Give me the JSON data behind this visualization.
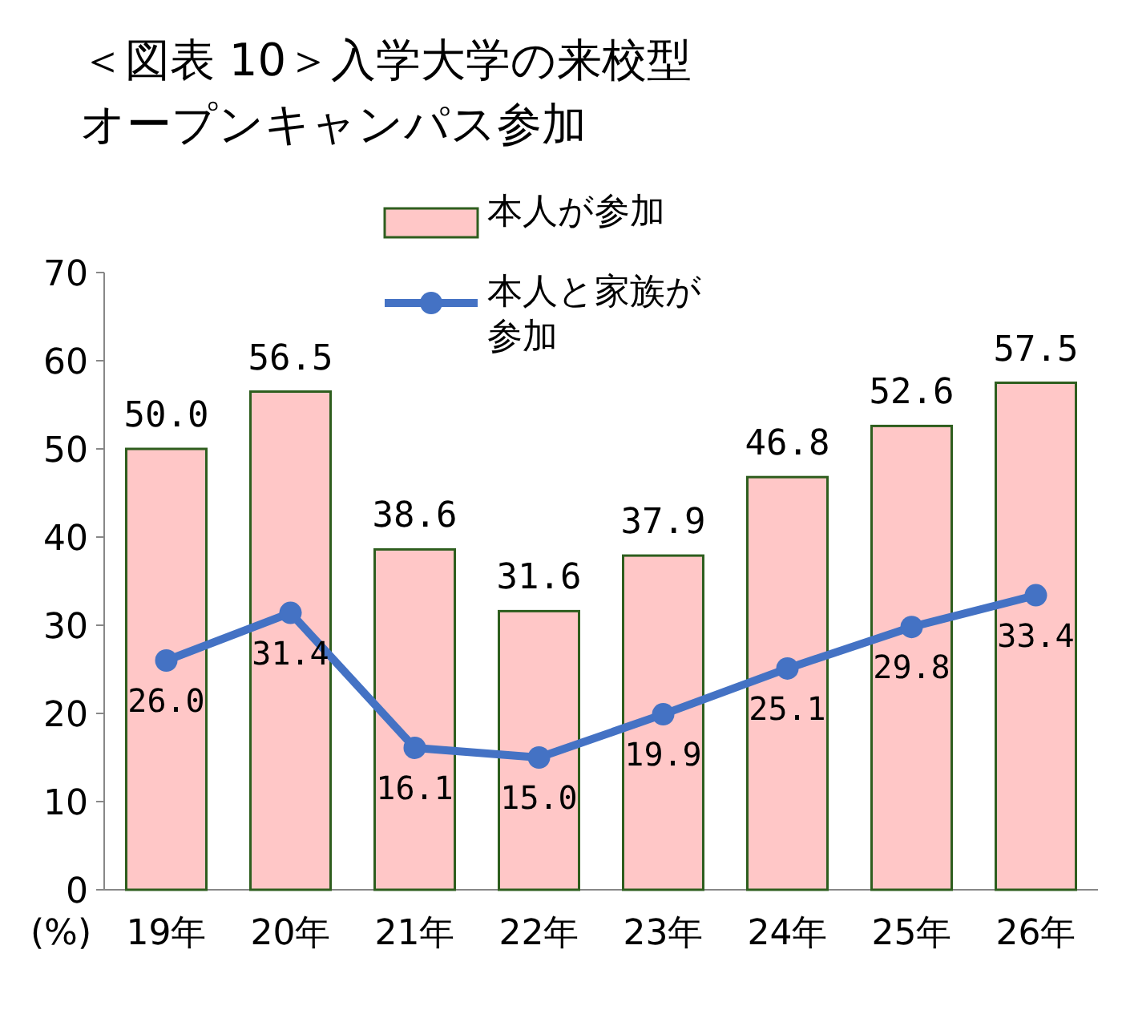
{
  "chart_data": {
    "type": "bar",
    "title": "＜図表 10＞入学大学の来校型オープンキャンパス参加",
    "ylabel": "(%)",
    "categories": [
      "19年",
      "20年",
      "21年",
      "22年",
      "23年",
      "24年",
      "25年",
      "26年"
    ],
    "series": [
      {
        "name": "本人が参加",
        "color": "#ffc7c7",
        "values": [
          50.0,
          56.5,
          38.6,
          31.6,
          37.9,
          46.8,
          52.6,
          57.5
        ],
        "value_labels": [
          "50.0",
          "56.5",
          "38.6",
          "31.6",
          "37.9",
          "46.8",
          "52.6",
          "57.5"
        ]
      },
      {
        "name": "本人と家族が参加",
        "type": "line",
        "color": "#4472c4",
        "marker": "circle",
        "values": [
          26.0,
          31.4,
          16.1,
          15.0,
          19.9,
          25.1,
          29.8,
          33.4
        ],
        "value_labels": [
          "26.0",
          "31.4",
          "16.1",
          "15.0",
          "19.9",
          "25.1",
          "29.8",
          "33.4"
        ]
      }
    ],
    "ylim": [
      0,
      70
    ],
    "yticks": [
      0,
      10,
      20,
      30,
      40,
      50,
      60,
      70
    ],
    "legend": "top",
    "grid": false
  }
}
